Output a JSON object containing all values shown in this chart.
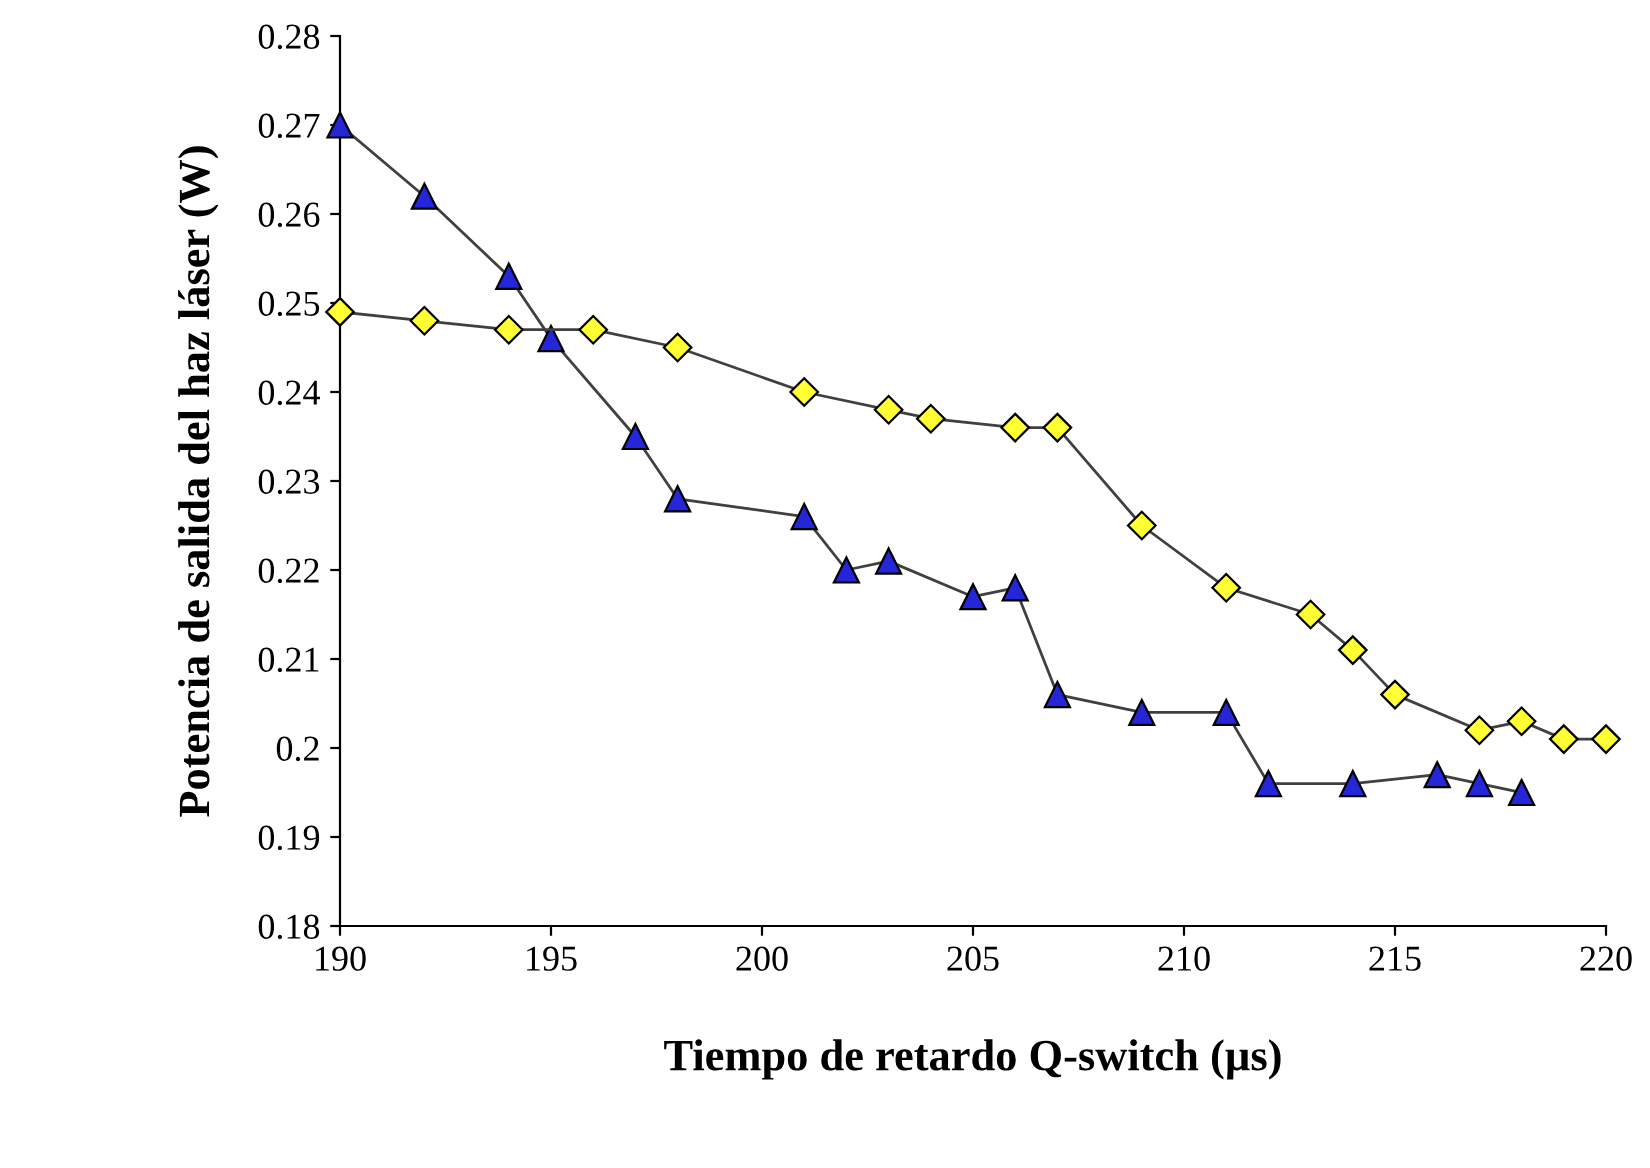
{
  "chart_data": {
    "type": "line",
    "xlabel": "Tiempo de retardo Q-switch (µs)",
    "ylabel": "Potencia de salida del haz láser (W)",
    "xlim": [
      190,
      220
    ],
    "xticks": [
      190,
      195,
      200,
      205,
      210,
      215,
      220
    ],
    "ylim": [
      0.18,
      0.28
    ],
    "yticks": [
      0.18,
      0.19,
      0.2,
      0.21,
      0.22,
      0.23,
      0.24,
      0.25,
      0.26,
      0.27,
      0.28
    ],
    "grid": false,
    "legend": false,
    "series": [
      {
        "color": "#2626d9",
        "marker": "triangle",
        "x": [
          190,
          192,
          194,
          195,
          197,
          198,
          201,
          202,
          203,
          205,
          206,
          207,
          209,
          211,
          212,
          214,
          216,
          217,
          218
        ],
        "values": [
          0.27,
          0.262,
          0.253,
          0.246,
          0.235,
          0.228,
          0.226,
          0.22,
          0.221,
          0.217,
          0.218,
          0.206,
          0.204,
          0.204,
          0.196,
          0.196,
          0.197,
          0.196,
          0.195
        ]
      },
      {
        "color": "#ffff33",
        "marker": "diamond",
        "x": [
          190,
          192,
          194,
          196,
          198,
          201,
          203,
          204,
          206,
          207,
          209,
          211,
          213,
          214,
          215,
          217,
          218,
          219,
          220
        ],
        "values": [
          0.249,
          0.248,
          0.247,
          0.247,
          0.245,
          0.24,
          0.238,
          0.237,
          0.236,
          0.236,
          0.225,
          0.218,
          0.215,
          0.211,
          0.206,
          0.202,
          0.203,
          0.201,
          0.201
        ]
      }
    ]
  }
}
